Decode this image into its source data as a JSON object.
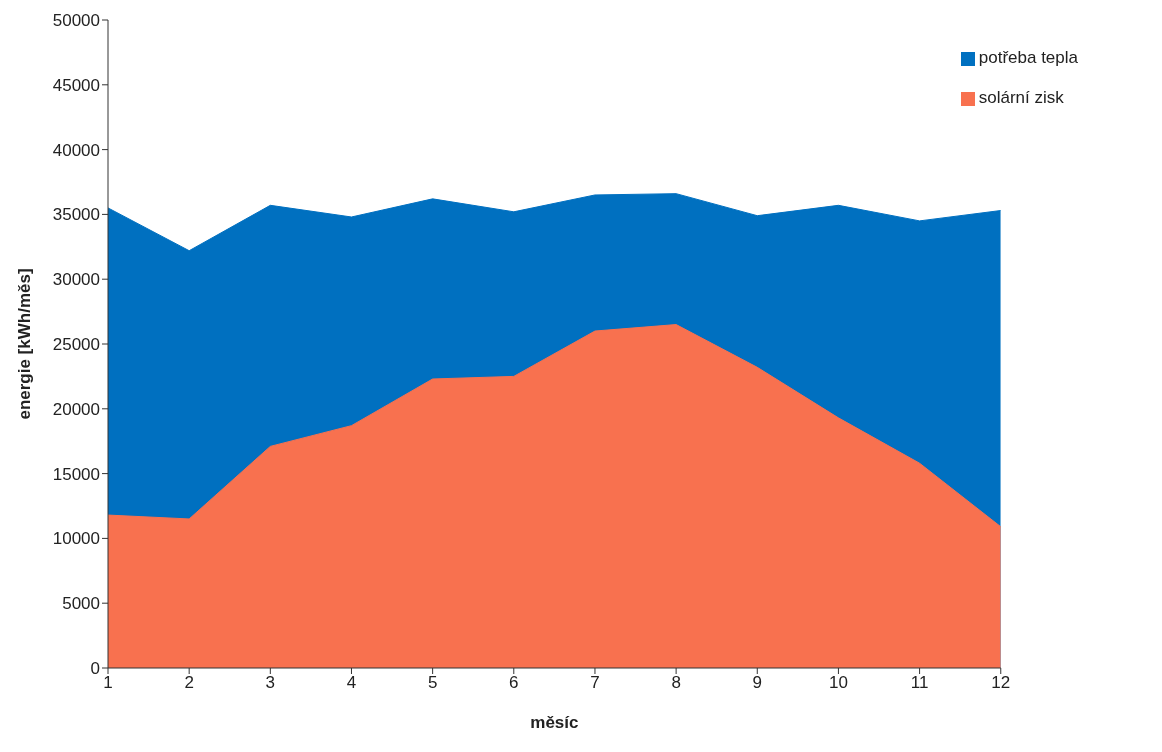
{
  "chart_data": {
    "type": "area",
    "xlabel": "měsíc",
    "ylabel": "energie [kWh/měs]",
    "x": [
      1,
      2,
      3,
      4,
      5,
      6,
      7,
      8,
      9,
      10,
      11,
      12
    ],
    "series": [
      {
        "name": "potřeba tepla",
        "color": "#0070c0",
        "values": [
          35500,
          32200,
          35700,
          34800,
          36200,
          35200,
          36500,
          36600,
          34900,
          35700,
          34500,
          35300
        ]
      },
      {
        "name": "solární zisk",
        "color": "#f8714f",
        "values": [
          11800,
          11500,
          17100,
          18700,
          22300,
          22500,
          26000,
          26500,
          23200,
          19300,
          15800,
          10900
        ]
      }
    ],
    "xlim": [
      1,
      12
    ],
    "xticks": [
      1,
      2,
      3,
      4,
      5,
      6,
      7,
      8,
      9,
      10,
      11,
      12
    ],
    "ylim": [
      0,
      50000
    ],
    "yticks": [
      0,
      5000,
      10000,
      15000,
      20000,
      25000,
      30000,
      35000,
      40000,
      45000,
      50000
    ],
    "grid": false,
    "legend": "top right"
  }
}
